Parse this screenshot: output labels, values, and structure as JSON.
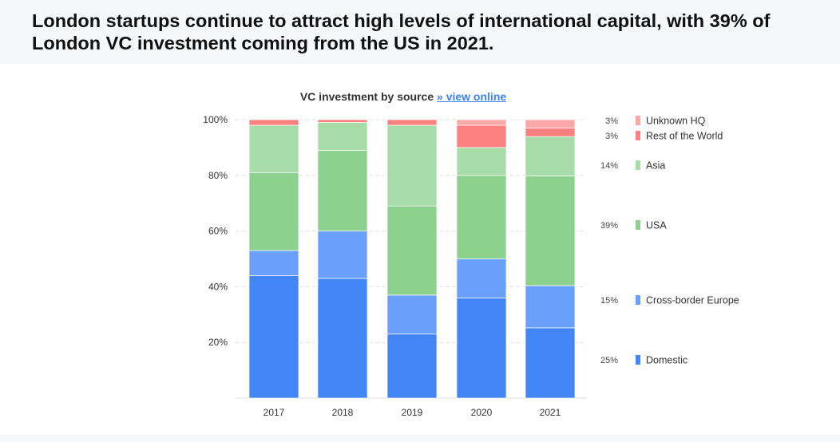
{
  "headline": "London startups continue to attract high levels of international capital, with 39% of London VC investment coming from the US in 2021.",
  "chart_data": {
    "type": "bar",
    "stacked": true,
    "title": "VC investment by source",
    "link_text": "» view online",
    "categories": [
      "2017",
      "2018",
      "2019",
      "2020",
      "2021"
    ],
    "yticks": [
      "20%",
      "40%",
      "60%",
      "80%",
      "100%"
    ],
    "ylim": [
      0,
      100
    ],
    "series": [
      {
        "name": "Domestic",
        "color": "#4286f5",
        "values": [
          44,
          43,
          23,
          36,
          25
        ],
        "legend_value": "25%"
      },
      {
        "name": "Cross-border Europe",
        "color": "#6a9ffb",
        "values": [
          9,
          17,
          14,
          14,
          15
        ],
        "legend_value": "15%"
      },
      {
        "name": "USA",
        "color": "#8dd18f",
        "values": [
          28,
          29,
          32,
          30,
          39
        ],
        "legend_value": "39%"
      },
      {
        "name": "Asia",
        "color": "#a7dca8",
        "values": [
          17,
          10,
          29,
          10,
          14
        ],
        "legend_value": "14%"
      },
      {
        "name": "Rest of the World",
        "color": "#fc8080",
        "values": [
          2,
          1,
          2,
          8,
          3
        ],
        "legend_value": "3%"
      },
      {
        "name": "Unknown HQ",
        "color": "#fba7a7",
        "values": [
          0,
          0,
          0,
          2,
          3
        ],
        "legend_value": "3%"
      }
    ]
  }
}
